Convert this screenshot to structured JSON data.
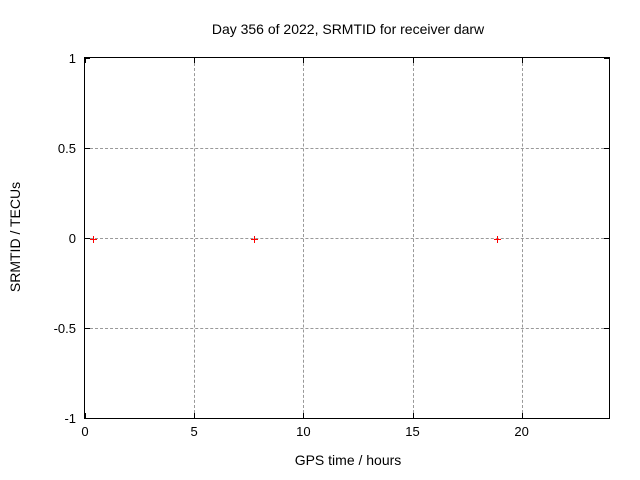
{
  "chart_data": {
    "type": "scatter",
    "title": "Day 356 of 2022, SRMTID for receiver darw",
    "xlabel": "GPS time / hours",
    "ylabel": "SRMTID / TECUs",
    "xlim": [
      0,
      24
    ],
    "ylim": [
      -1,
      1
    ],
    "xticks": [
      0,
      5,
      10,
      15,
      20
    ],
    "xtick_labels": [
      "0",
      "5",
      "10",
      "15",
      "20"
    ],
    "yticks": [
      1,
      0.5,
      0,
      -0.5,
      -1
    ],
    "ytick_labels": [
      "1",
      "0.5",
      "0",
      "-0.5",
      "-1"
    ],
    "grid": true,
    "legend": "none",
    "series": [
      {
        "name": "SRMTID",
        "marker": "plus",
        "color": "#ff0000",
        "points": [
          {
            "x": 0.4,
            "y": -0.01
          },
          {
            "x": 7.8,
            "y": -0.01
          },
          {
            "x": 18.9,
            "y": -0.01
          }
        ]
      }
    ],
    "colors": {
      "background": "#ffffff",
      "axis": "#000000",
      "grid": "#999999",
      "marker": "#ff0000",
      "text": "#000000"
    }
  }
}
